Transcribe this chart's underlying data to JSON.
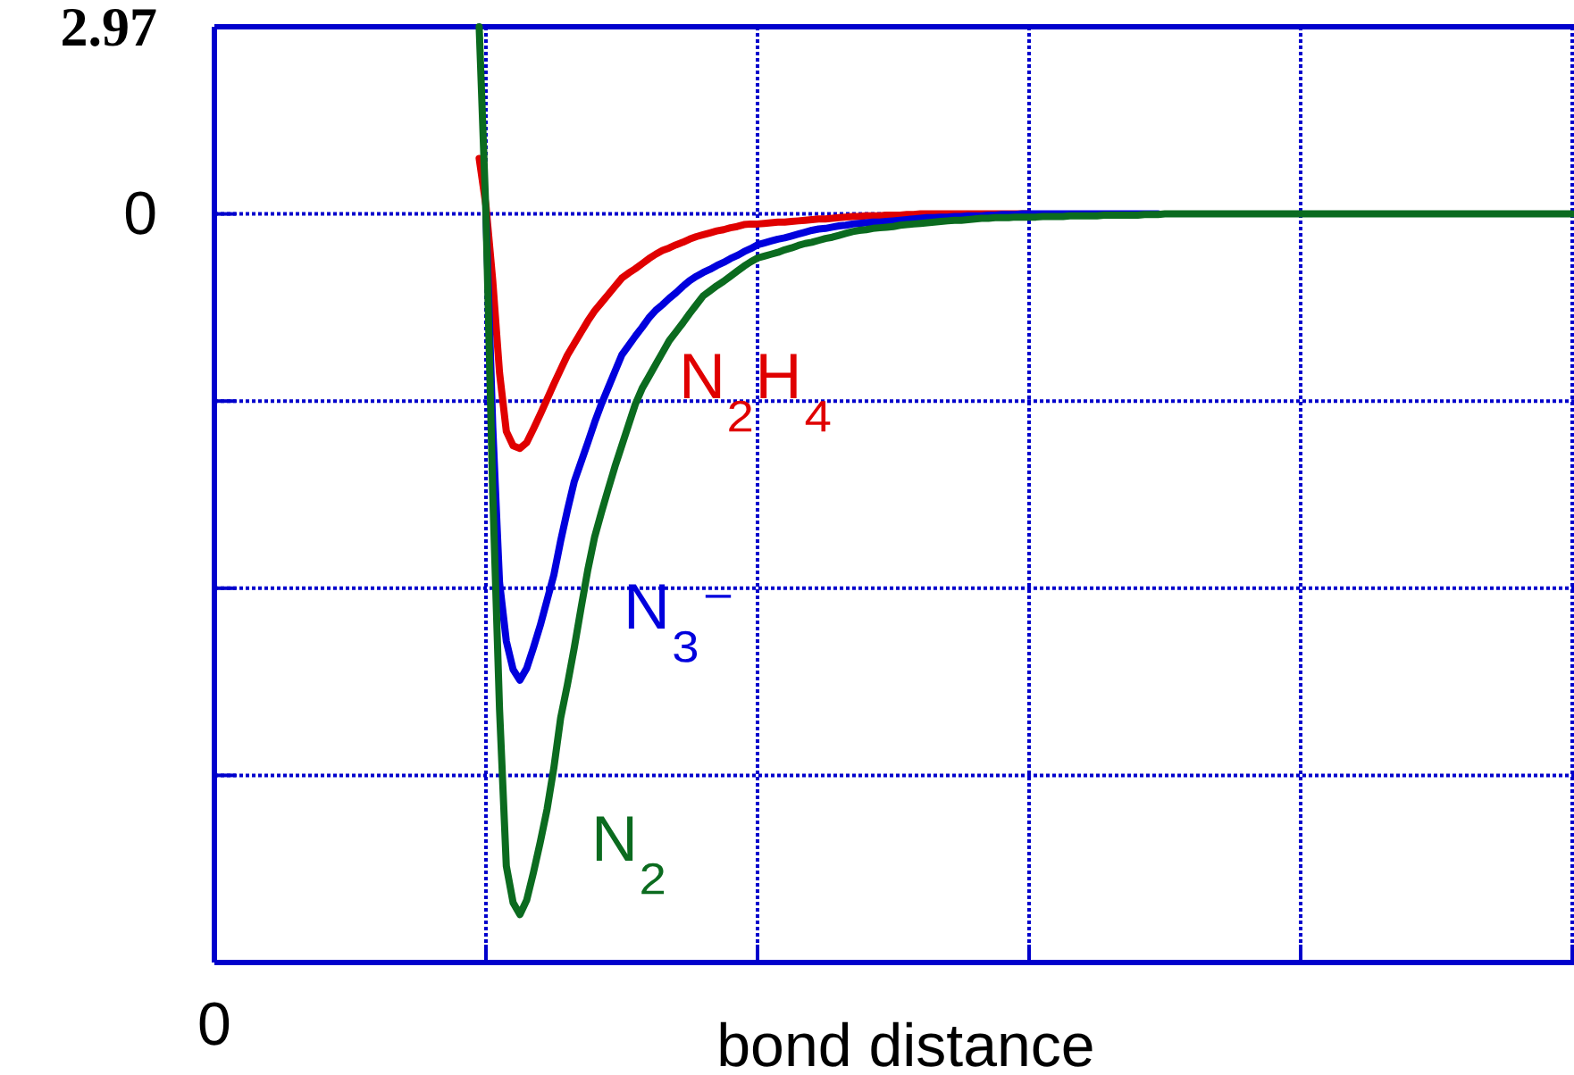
{
  "chart_data": {
    "type": "line",
    "xlabel": "bond distance",
    "annotations": [
      "0"
    ],
    "categories": [
      null,
      null,
      null,
      null,
      null,
      null,
      null,
      null,
      null,
      null,
      null,
      null,
      null,
      null,
      null,
      null,
      null,
      null,
      null,
      null,
      null,
      null,
      null,
      null,
      null,
      null,
      null,
      null,
      null,
      null,
      null,
      null,
      null,
      null,
      null,
      null,
      null,
      null,
      null,
      null,
      null,
      null,
      null,
      null,
      null,
      null,
      null,
      null,
      null,
      null,
      null,
      null,
      null,
      null,
      null,
      null,
      null,
      null,
      null,
      null,
      null,
      null,
      null,
      null,
      null,
      null,
      null,
      null,
      null,
      null,
      null,
      null,
      null,
      null,
      null,
      null,
      null,
      null,
      null,
      null,
      null,
      null,
      null,
      null,
      null,
      null,
      null,
      null,
      null,
      null,
      null,
      null,
      null,
      null,
      null,
      null,
      null,
      null,
      null,
      null,
      null,
      null,
      null,
      null,
      null,
      null,
      null,
      null,
      null,
      null,
      null,
      null,
      null,
      null,
      null,
      null,
      null,
      null,
      null,
      null,
      null,
      null,
      null,
      null,
      null,
      null,
      null,
      null,
      null,
      null,
      null,
      null,
      null,
      null,
      null,
      null,
      null,
      null,
      null,
      null,
      null,
      null,
      null,
      null,
      null,
      null,
      null,
      null,
      null,
      null,
      null,
      null,
      null,
      null,
      null,
      null,
      null,
      null,
      null,
      null,
      null,
      null,
      null,
      null,
      null,
      null,
      null,
      null,
      null,
      null,
      null,
      null,
      null,
      null,
      null,
      null,
      null,
      null,
      null,
      null,
      null,
      null,
      null,
      null,
      null,
      null,
      null,
      null,
      null,
      null,
      null,
      null,
      null,
      null,
      null,
      null,
      null,
      null,
      null,
      null,
      null
    ],
    "ylim": [
      -11.88,
      2.97
    ],
    "yticks": [
      2.97,
      0,
      {
        "value": -2.97,
        "label": null
      },
      {
        "value": -5.94,
        "label": null
      },
      {
        "value": -8.91,
        "label": null
      }
    ],
    "grid": true,
    "line_style": "solid",
    "series": [
      {
        "name": "N₂H₄",
        "color": "#e00000",
        "values": [
          null,
          null,
          null,
          null,
          null,
          null,
          null,
          null,
          null,
          null,
          null,
          null,
          null,
          null,
          null,
          null,
          null,
          null,
          null,
          null,
          null,
          null,
          null,
          null,
          null,
          null,
          null,
          null,
          null,
          null,
          null,
          null,
          null,
          null,
          null,
          null,
          null,
          null,
          null,
          0.88,
          0.13,
          -1.06,
          -2.52,
          -3.45,
          -3.68,
          -3.72,
          -3.63,
          -3.41,
          -3.18,
          -2.94,
          -2.7,
          -2.47,
          -2.24,
          -2.06,
          -1.88,
          -1.7,
          -1.54,
          -1.41,
          -1.28,
          -1.15,
          -1.02,
          -0.94,
          -0.87,
          -0.79,
          -0.71,
          -0.64,
          -0.58,
          -0.54,
          -0.49,
          -0.45,
          -0.4,
          -0.36,
          -0.33,
          -0.3,
          -0.27,
          -0.25,
          -0.22,
          -0.2,
          -0.17,
          -0.16,
          -0.16,
          -0.15,
          -0.14,
          -0.13,
          -0.13,
          -0.12,
          -0.11,
          -0.1,
          -0.09,
          -0.08,
          -0.08,
          -0.07,
          -0.06,
          -0.05,
          -0.04,
          -0.04,
          -0.03,
          -0.03,
          -0.03,
          -0.02,
          -0.02,
          -0.02,
          -0.01,
          -0.01,
          0,
          0,
          0,
          0,
          0,
          0,
          0,
          0,
          0,
          0,
          0,
          0,
          0,
          0,
          0,
          0,
          0,
          null,
          null,
          null,
          null,
          null,
          null,
          null,
          null,
          null,
          null,
          null,
          null,
          null,
          null,
          null,
          null,
          null,
          null,
          null,
          null,
          null,
          null,
          null,
          null,
          null,
          null,
          null,
          null,
          null,
          null,
          null,
          null,
          null,
          null,
          null,
          null,
          null,
          null,
          null,
          null,
          null,
          null,
          null,
          null,
          null,
          null,
          null,
          null,
          null,
          null,
          null,
          null,
          null,
          null,
          null,
          null,
          null,
          null,
          null,
          null,
          null,
          null,
          null,
          null,
          null,
          null,
          null,
          null,
          null,
          null,
          null,
          null,
          null,
          null,
          null,
          null,
          null,
          null,
          null,
          null
        ]
      },
      {
        "name": "N₃⁻",
        "color": "#0000dd",
        "values": [
          null,
          null,
          null,
          null,
          null,
          null,
          null,
          null,
          null,
          null,
          null,
          null,
          null,
          null,
          null,
          null,
          null,
          null,
          null,
          null,
          null,
          null,
          null,
          null,
          null,
          null,
          null,
          null,
          null,
          null,
          null,
          null,
          null,
          null,
          null,
          null,
          null,
          null,
          null,
          null,
          0,
          -3.38,
          -5.85,
          -6.78,
          -7.23,
          -7.4,
          -7.21,
          -6.88,
          -6.53,
          -6.13,
          -5.73,
          -5.19,
          -4.7,
          -4.25,
          -3.94,
          -3.63,
          -3.31,
          -3.02,
          -2.76,
          -2.5,
          -2.24,
          -2.09,
          -1.94,
          -1.8,
          -1.65,
          -1.53,
          -1.44,
          -1.34,
          -1.25,
          -1.15,
          -1.06,
          -0.99,
          -0.93,
          -0.88,
          -0.82,
          -0.77,
          -0.71,
          -0.66,
          -0.6,
          -0.55,
          -0.49,
          -0.46,
          -0.43,
          -0.4,
          -0.38,
          -0.35,
          -0.32,
          -0.29,
          -0.26,
          -0.24,
          -0.23,
          -0.21,
          -0.19,
          -0.18,
          -0.16,
          -0.15,
          -0.14,
          -0.13,
          -0.13,
          -0.12,
          -0.11,
          -0.1,
          -0.09,
          -0.08,
          -0.07,
          -0.06,
          -0.06,
          -0.05,
          -0.05,
          -0.04,
          -0.04,
          -0.03,
          -0.03,
          -0.03,
          -0.02,
          -0.02,
          -0.01,
          -0.01,
          -0.01,
          0,
          0,
          0,
          0,
          0,
          0,
          0,
          0,
          0,
          0,
          0,
          0,
          0,
          0,
          0,
          0,
          0,
          0,
          0,
          0,
          0,
          null,
          null,
          null,
          null,
          null,
          null,
          null,
          null,
          null,
          null,
          null,
          null,
          null,
          null,
          null,
          null,
          null,
          null,
          null,
          null,
          null,
          null,
          null,
          null,
          null,
          null,
          null,
          null,
          null,
          null,
          null,
          null,
          null,
          null,
          null,
          null,
          null,
          null,
          null,
          null,
          null,
          null,
          null,
          null,
          null,
          null,
          null,
          null,
          null,
          null,
          null,
          null,
          null,
          null,
          null,
          null,
          null,
          null,
          null,
          null,
          null
        ]
      },
      {
        "name": "N₂",
        "color": "#0b6b1f",
        "values": [
          null,
          null,
          null,
          null,
          null,
          null,
          null,
          null,
          null,
          null,
          null,
          null,
          null,
          null,
          null,
          null,
          null,
          null,
          null,
          null,
          null,
          null,
          null,
          null,
          null,
          null,
          null,
          null,
          null,
          null,
          null,
          null,
          null,
          null,
          null,
          null,
          null,
          null,
          null,
          2.97,
          0,
          -4.44,
          -7.86,
          -10.35,
          -10.93,
          -11.12,
          -10.89,
          -10.45,
          -9.97,
          -9.45,
          -8.79,
          -8.0,
          -7.47,
          -6.89,
          -6.26,
          -5.65,
          -5.13,
          -4.74,
          -4.37,
          -4.01,
          -3.68,
          -3.35,
          -3.02,
          -2.77,
          -2.58,
          -2.39,
          -2.2,
          -2.01,
          -1.87,
          -1.73,
          -1.58,
          -1.44,
          -1.3,
          -1.22,
          -1.14,
          -1.07,
          -0.99,
          -0.91,
          -0.83,
          -0.76,
          -0.7,
          -0.67,
          -0.64,
          -0.61,
          -0.57,
          -0.54,
          -0.5,
          -0.47,
          -0.45,
          -0.42,
          -0.39,
          -0.37,
          -0.34,
          -0.31,
          -0.28,
          -0.26,
          -0.25,
          -0.23,
          -0.22,
          -0.21,
          -0.2,
          -0.18,
          -0.17,
          -0.16,
          -0.15,
          -0.14,
          -0.13,
          -0.12,
          -0.11,
          -0.1,
          -0.1,
          -0.09,
          -0.08,
          -0.07,
          -0.07,
          -0.06,
          -0.06,
          -0.06,
          -0.05,
          -0.05,
          -0.05,
          -0.05,
          -0.04,
          -0.04,
          -0.04,
          -0.04,
          -0.03,
          -0.03,
          -0.03,
          -0.03,
          -0.03,
          -0.02,
          -0.02,
          -0.02,
          -0.02,
          -0.02,
          -0.02,
          -0.01,
          -0.01,
          -0.01,
          0,
          0,
          0,
          0,
          0,
          0,
          0,
          0,
          0,
          0,
          0,
          0,
          0,
          0,
          0,
          0,
          0,
          0,
          0,
          0,
          0,
          0,
          0,
          0,
          0,
          0,
          0,
          0,
          0,
          0,
          0,
          0,
          0,
          0,
          0,
          0,
          0,
          0,
          0,
          0,
          0,
          0,
          0,
          0,
          0,
          0,
          0,
          0,
          0,
          0,
          0,
          0,
          0,
          0,
          0,
          0,
          0,
          0,
          0,
          0,
          0
        ]
      }
    ]
  }
}
